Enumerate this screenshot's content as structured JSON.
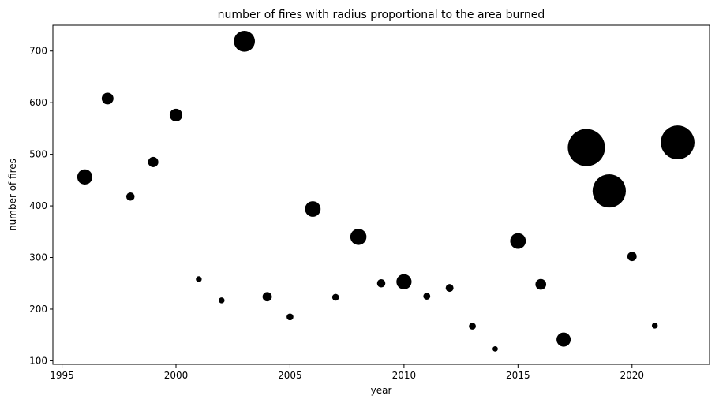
{
  "chart_data": {
    "type": "scatter",
    "title": "number of fires with radius proportional to the area burned",
    "xlabel": "year",
    "ylabel": "number of fires",
    "xlim": [
      1994.6,
      2023.4
    ],
    "ylim": [
      93,
      750
    ],
    "xticks": [
      1995,
      2000,
      2005,
      2010,
      2015,
      2020
    ],
    "yticks": [
      100,
      200,
      300,
      400,
      500,
      600,
      700
    ],
    "grid": false,
    "legend": "none",
    "marker_color": "#000000",
    "note_size": "marker radius proportional to area burned (relative scale)",
    "points": [
      {
        "year": 1996,
        "fires": 456,
        "size": 0.31
      },
      {
        "year": 1997,
        "fires": 608,
        "size": 0.24
      },
      {
        "year": 1998,
        "fires": 418,
        "size": 0.17
      },
      {
        "year": 1999,
        "fires": 485,
        "size": 0.21
      },
      {
        "year": 2000,
        "fires": 576,
        "size": 0.26
      },
      {
        "year": 2001,
        "fires": 258,
        "size": 0.12
      },
      {
        "year": 2002,
        "fires": 217,
        "size": 0.12
      },
      {
        "year": 2003,
        "fires": 719,
        "size": 0.43
      },
      {
        "year": 2004,
        "fires": 224,
        "size": 0.19
      },
      {
        "year": 2005,
        "fires": 185,
        "size": 0.14
      },
      {
        "year": 2006,
        "fires": 394,
        "size": 0.32
      },
      {
        "year": 2007,
        "fires": 223,
        "size": 0.14
      },
      {
        "year": 2008,
        "fires": 340,
        "size": 0.33
      },
      {
        "year": 2009,
        "fires": 250,
        "size": 0.17
      },
      {
        "year": 2010,
        "fires": 253,
        "size": 0.31
      },
      {
        "year": 2011,
        "fires": 225,
        "size": 0.14
      },
      {
        "year": 2012,
        "fires": 241,
        "size": 0.16
      },
      {
        "year": 2013,
        "fires": 167,
        "size": 0.14
      },
      {
        "year": 2014,
        "fires": 123,
        "size": 0.11
      },
      {
        "year": 2015,
        "fires": 332,
        "size": 0.32
      },
      {
        "year": 2016,
        "fires": 248,
        "size": 0.22
      },
      {
        "year": 2017,
        "fires": 141,
        "size": 0.29
      },
      {
        "year": 2018,
        "fires": 513,
        "size": 0.76
      },
      {
        "year": 2019,
        "fires": 429,
        "size": 0.68
      },
      {
        "year": 2020,
        "fires": 302,
        "size": 0.19
      },
      {
        "year": 2021,
        "fires": 168,
        "size": 0.12
      },
      {
        "year": 2022,
        "fires": 523,
        "size": 0.69
      }
    ]
  }
}
